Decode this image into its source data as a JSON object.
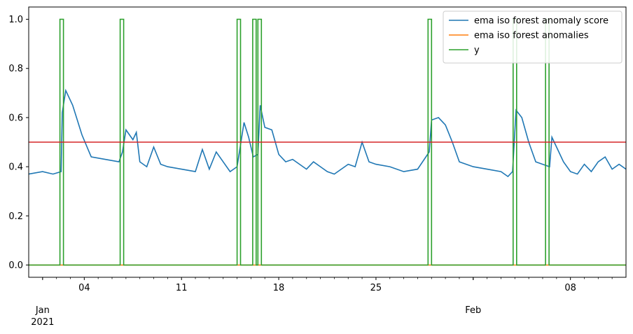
{
  "chart_data": {
    "type": "line",
    "title": "",
    "xlabel": "",
    "ylabel": "",
    "x_range": [
      "2020-12-31T00:00",
      "2021-02-12T00:00"
    ],
    "ylim": [
      -0.05,
      1.05
    ],
    "grid": false,
    "legend_placement": "top-right",
    "y_ticks": [
      {
        "value": 0.0,
        "label": "0.0"
      },
      {
        "value": 0.2,
        "label": "0.2"
      },
      {
        "value": 0.4,
        "label": "0.4"
      },
      {
        "value": 0.6,
        "label": "0.6"
      },
      {
        "value": 0.8,
        "label": "0.8"
      },
      {
        "value": 1.0,
        "label": "1.0"
      }
    ],
    "x_major_ticks": [
      {
        "date": "2021-01-04",
        "label": "04"
      },
      {
        "date": "2021-01-11",
        "label": "11"
      },
      {
        "date": "2021-01-18",
        "label": "18"
      },
      {
        "date": "2021-01-25",
        "label": "25"
      },
      {
        "date": "2021-02-01",
        "label": ""
      },
      {
        "date": "2021-02-08",
        "label": "08"
      }
    ],
    "x_minor_tick_dates": [
      "2021-01-01",
      "2021-01-02",
      "2021-01-03",
      "2021-01-05",
      "2021-01-06",
      "2021-01-07",
      "2021-01-08",
      "2021-01-09",
      "2021-01-10",
      "2021-01-12",
      "2021-01-13",
      "2021-01-14",
      "2021-01-15",
      "2021-01-16",
      "2021-01-17",
      "2021-01-19",
      "2021-01-20",
      "2021-01-21",
      "2021-01-22",
      "2021-01-23",
      "2021-01-24",
      "2021-01-26",
      "2021-01-27",
      "2021-01-28",
      "2021-01-29",
      "2021-01-30",
      "2021-01-31",
      "2021-02-02",
      "2021-02-03",
      "2021-02-04",
      "2021-02-05",
      "2021-02-06",
      "2021-02-07",
      "2021-02-09",
      "2021-02-10",
      "2021-02-11"
    ],
    "month_labels": [
      {
        "date": "2021-01-01",
        "month": "Jan",
        "year": "2021"
      },
      {
        "date": "2021-02-01",
        "month": "Feb",
        "year": ""
      }
    ],
    "threshold": {
      "value": 0.5,
      "color": "#d62728"
    },
    "series": [
      {
        "name": "ema iso forest anomaly score",
        "color": "#1f77b4",
        "points": [
          [
            "2020-12-31T00:00",
            0.37
          ],
          [
            "2021-01-01T00:00",
            0.38
          ],
          [
            "2021-01-01T18:00",
            0.37
          ],
          [
            "2021-01-02T08:00",
            0.38
          ],
          [
            "2021-01-02T10:00",
            0.62
          ],
          [
            "2021-01-02T16:00",
            0.71
          ],
          [
            "2021-01-03T04:00",
            0.65
          ],
          [
            "2021-01-03T20:00",
            0.53
          ],
          [
            "2021-01-04T12:00",
            0.44
          ],
          [
            "2021-01-05T12:00",
            0.43
          ],
          [
            "2021-01-06T12:00",
            0.42
          ],
          [
            "2021-01-06T18:00",
            0.46
          ],
          [
            "2021-01-07T00:00",
            0.55
          ],
          [
            "2021-01-07T12:00",
            0.51
          ],
          [
            "2021-01-07T18:00",
            0.54
          ],
          [
            "2021-01-08T00:00",
            0.42
          ],
          [
            "2021-01-08T12:00",
            0.4
          ],
          [
            "2021-01-09T00:00",
            0.48
          ],
          [
            "2021-01-09T12:00",
            0.41
          ],
          [
            "2021-01-10T00:00",
            0.4
          ],
          [
            "2021-01-11T00:00",
            0.39
          ],
          [
            "2021-01-12T00:00",
            0.38
          ],
          [
            "2021-01-12T12:00",
            0.47
          ],
          [
            "2021-01-13T00:00",
            0.39
          ],
          [
            "2021-01-13T12:00",
            0.46
          ],
          [
            "2021-01-14T00:00",
            0.42
          ],
          [
            "2021-01-14T12:00",
            0.38
          ],
          [
            "2021-01-15T00:00",
            0.4
          ],
          [
            "2021-01-15T12:00",
            0.58
          ],
          [
            "2021-01-15T20:00",
            0.52
          ],
          [
            "2021-01-16T04:00",
            0.44
          ],
          [
            "2021-01-16T12:00",
            0.45
          ],
          [
            "2021-01-16T16:00",
            0.65
          ],
          [
            "2021-01-17T00:00",
            0.56
          ],
          [
            "2021-01-17T12:00",
            0.55
          ],
          [
            "2021-01-18T00:00",
            0.45
          ],
          [
            "2021-01-18T12:00",
            0.42
          ],
          [
            "2021-01-19T00:00",
            0.43
          ],
          [
            "2021-01-20T00:00",
            0.39
          ],
          [
            "2021-01-20T12:00",
            0.42
          ],
          [
            "2021-01-21T00:00",
            0.4
          ],
          [
            "2021-01-21T12:00",
            0.38
          ],
          [
            "2021-01-22T00:00",
            0.37
          ],
          [
            "2021-01-23T00:00",
            0.41
          ],
          [
            "2021-01-23T12:00",
            0.4
          ],
          [
            "2021-01-24T00:00",
            0.5
          ],
          [
            "2021-01-24T12:00",
            0.42
          ],
          [
            "2021-01-25T00:00",
            0.41
          ],
          [
            "2021-01-26T00:00",
            0.4
          ],
          [
            "2021-01-27T00:00",
            0.38
          ],
          [
            "2021-01-28T00:00",
            0.39
          ],
          [
            "2021-01-28T20:00",
            0.46
          ],
          [
            "2021-01-29T00:00",
            0.59
          ],
          [
            "2021-01-29T12:00",
            0.6
          ],
          [
            "2021-01-30T00:00",
            0.57
          ],
          [
            "2021-01-30T12:00",
            0.5
          ],
          [
            "2021-01-31T00:00",
            0.42
          ],
          [
            "2021-02-01T00:00",
            0.4
          ],
          [
            "2021-02-02T00:00",
            0.39
          ],
          [
            "2021-02-03T00:00",
            0.38
          ],
          [
            "2021-02-03T12:00",
            0.36
          ],
          [
            "2021-02-03T20:00",
            0.38
          ],
          [
            "2021-02-04T02:00",
            0.63
          ],
          [
            "2021-02-04T12:00",
            0.6
          ],
          [
            "2021-02-05T00:00",
            0.5
          ],
          [
            "2021-02-05T12:00",
            0.42
          ],
          [
            "2021-02-06T00:00",
            0.41
          ],
          [
            "2021-02-06T12:00",
            0.4
          ],
          [
            "2021-02-06T16:00",
            0.52
          ],
          [
            "2021-02-07T00:00",
            0.48
          ],
          [
            "2021-02-07T12:00",
            0.42
          ],
          [
            "2021-02-08T00:00",
            0.38
          ],
          [
            "2021-02-08T12:00",
            0.37
          ],
          [
            "2021-02-09T00:00",
            0.41
          ],
          [
            "2021-02-09T12:00",
            0.38
          ],
          [
            "2021-02-10T00:00",
            0.42
          ],
          [
            "2021-02-10T12:00",
            0.44
          ],
          [
            "2021-02-11T00:00",
            0.39
          ],
          [
            "2021-02-11T12:00",
            0.41
          ],
          [
            "2021-02-12T00:00",
            0.39
          ]
        ]
      },
      {
        "name": "ema iso forest anomalies",
        "color": "#ff7f0e",
        "points": [
          [
            "2020-12-31T00:00",
            0.0
          ],
          [
            "2021-02-12T00:00",
            0.0
          ]
        ]
      },
      {
        "name": "y",
        "color": "#2ca02c",
        "baseline": 0.0,
        "spike_value": 1.0,
        "spike_dates": [
          "2021-01-02T09:00",
          "2021-01-06T17:00",
          "2021-01-15T03:00",
          "2021-01-16T06:00",
          "2021-01-16T15:00",
          "2021-01-28T21:00",
          "2021-02-04T00:00",
          "2021-02-06T08:00"
        ]
      }
    ]
  }
}
